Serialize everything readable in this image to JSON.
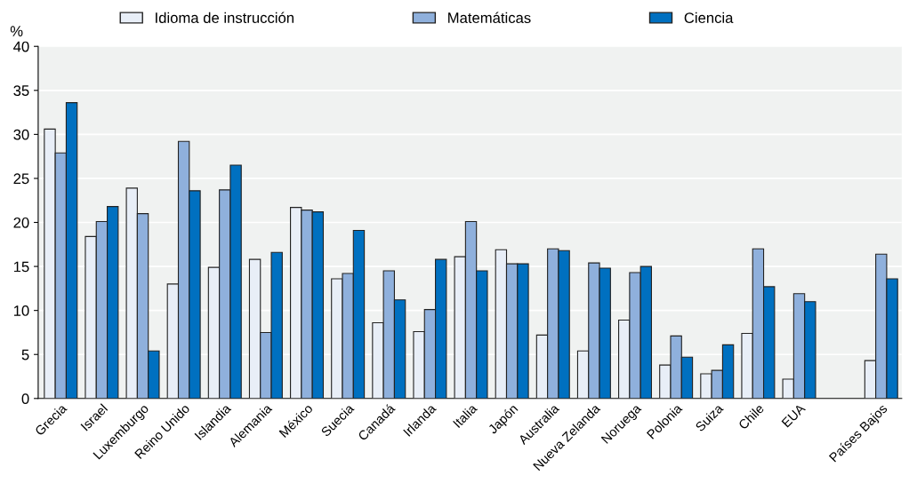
{
  "chart_data": {
    "type": "bar",
    "ylabel": "%",
    "categories": [
      "Grecia",
      "Israel",
      "Luxemburgo",
      "Reino Unido",
      "Islandia",
      "Alemania",
      "México",
      "Suecia",
      "Canadá",
      "Irlanda",
      "Italia",
      "Japón",
      "Australia",
      "Nueva Zelanda",
      "Noruega",
      "Polonia",
      "Suiza",
      "Chile",
      "EUA",
      null,
      "Países Bajos"
    ],
    "series": [
      {
        "name": "Idioma de instrucción",
        "color": "#e8eef7",
        "values": [
          30.6,
          18.4,
          23.9,
          13.0,
          14.9,
          15.8,
          21.7,
          13.6,
          8.6,
          7.6,
          16.1,
          16.9,
          7.2,
          5.4,
          8.9,
          3.8,
          2.8,
          7.4,
          2.2,
          null,
          4.3
        ]
      },
      {
        "name": "Matemáticas",
        "color": "#8fb0dc",
        "values": [
          27.9,
          20.1,
          21.0,
          29.2,
          23.7,
          7.5,
          21.4,
          14.2,
          14.5,
          10.1,
          20.1,
          15.3,
          17.0,
          15.4,
          14.3,
          7.1,
          3.2,
          17.0,
          11.9,
          null,
          16.4
        ]
      },
      {
        "name": "Ciencia",
        "color": "#0070c0",
        "values": [
          33.6,
          21.8,
          5.4,
          23.6,
          26.5,
          16.6,
          21.2,
          19.1,
          11.2,
          15.8,
          14.5,
          15.3,
          16.8,
          14.8,
          15.0,
          4.7,
          6.1,
          12.7,
          11.0,
          null,
          13.6
        ]
      }
    ],
    "ylim": [
      0,
      40
    ],
    "yticks": [
      0,
      5,
      10,
      15,
      20,
      25,
      30,
      35,
      40
    ],
    "grid": "y",
    "legend": "top"
  }
}
